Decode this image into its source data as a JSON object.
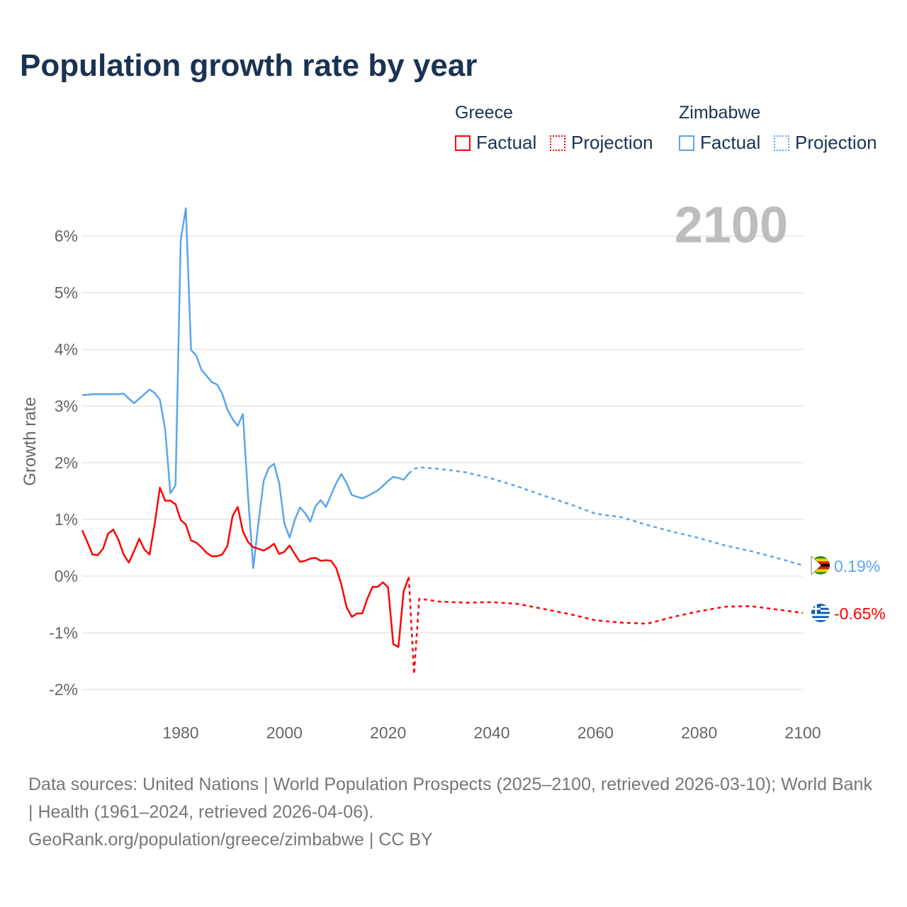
{
  "title": "Population growth rate by year",
  "legend": {
    "groups": [
      {
        "name": "Greece",
        "factual": "Factual",
        "projection": "Projection",
        "color": "#ff0000"
      },
      {
        "name": "Zimbabwe",
        "factual": "Factual",
        "projection": "Projection",
        "color": "#5aa5ec"
      }
    ]
  },
  "year_label": "2100",
  "footer": {
    "line1": "Data sources: United Nations | World Population Prospects (2025–2100, retrieved 2026-03-10); World Bank | Health (1961–2024, retrieved 2026-04-06).",
    "line2": "GeoRank.org/population/greece/zimbabwe | CC BY"
  },
  "chart_data": {
    "type": "line",
    "title": "Population growth rate by year",
    "xlabel": "",
    "ylabel": "Growth rate",
    "xlim": [
      1961,
      2100
    ],
    "ylim": [
      -2.3,
      6.8
    ],
    "xticks": [
      1980,
      2000,
      2020,
      2040,
      2060,
      2080,
      2100
    ],
    "yticks": [
      -2,
      -1,
      0,
      1,
      2,
      3,
      4,
      5,
      6
    ],
    "ytick_labels": [
      "-2%",
      "-1%",
      "0%",
      "1%",
      "2%",
      "3%",
      "4%",
      "5%",
      "6%"
    ],
    "grid": true,
    "end_labels": {
      "Zimbabwe": "0.19%",
      "Greece": "-0.65%"
    },
    "series": [
      {
        "name": "Zimbabwe Factual",
        "color": "#5aa5ec",
        "dashed": false,
        "x": [
          1961,
          1962,
          1963,
          1964,
          1965,
          1966,
          1967,
          1968,
          1969,
          1970,
          1971,
          1972,
          1973,
          1974,
          1975,
          1976,
          1977,
          1978,
          1979,
          1980,
          1981,
          1982,
          1983,
          1984,
          1985,
          1986,
          1987,
          1988,
          1989,
          1990,
          1991,
          1992,
          1993,
          1994,
          1995,
          1996,
          1997,
          1998,
          1999,
          2000,
          2001,
          2002,
          2003,
          2004,
          2005,
          2006,
          2007,
          2008,
          2009,
          2010,
          2011,
          2012,
          2013,
          2014,
          2015,
          2016,
          2017,
          2018,
          2019,
          2020,
          2021,
          2022,
          2023,
          2024
        ],
        "y": [
          3.19,
          3.2,
          3.21,
          3.21,
          3.21,
          3.21,
          3.21,
          3.21,
          3.22,
          3.13,
          3.05,
          3.13,
          3.21,
          3.29,
          3.23,
          3.11,
          2.59,
          1.46,
          1.6,
          5.92,
          6.49,
          3.99,
          3.89,
          3.64,
          3.53,
          3.42,
          3.38,
          3.22,
          2.94,
          2.77,
          2.65,
          2.86,
          1.4,
          0.14,
          0.95,
          1.68,
          1.91,
          1.98,
          1.64,
          0.93,
          0.68,
          0.99,
          1.21,
          1.11,
          0.96,
          1.23,
          1.34,
          1.22,
          1.43,
          1.64,
          1.8,
          1.64,
          1.43,
          1.4,
          1.37,
          1.41,
          1.46,
          1.51,
          1.59,
          1.68,
          1.75,
          1.73,
          1.7,
          1.81
        ]
      },
      {
        "name": "Zimbabwe Projection",
        "color": "#5aa5ec",
        "dashed": true,
        "x": [
          2024,
          2025,
          2026,
          2030,
          2035,
          2040,
          2045,
          2050,
          2055,
          2060,
          2065,
          2070,
          2075,
          2080,
          2085,
          2090,
          2095,
          2100
        ],
        "y": [
          1.81,
          1.89,
          1.92,
          1.89,
          1.83,
          1.72,
          1.58,
          1.42,
          1.27,
          1.1,
          1.04,
          0.9,
          0.78,
          0.67,
          0.54,
          0.44,
          0.32,
          0.19
        ]
      },
      {
        "name": "Greece Factual",
        "color": "#ff0000",
        "dashed": false,
        "x": [
          1961,
          1962,
          1963,
          1964,
          1965,
          1966,
          1967,
          1968,
          1969,
          1970,
          1971,
          1972,
          1973,
          1974,
          1975,
          1976,
          1977,
          1978,
          1979,
          1980,
          1981,
          1982,
          1983,
          1984,
          1985,
          1986,
          1987,
          1988,
          1989,
          1990,
          1991,
          1992,
          1993,
          1994,
          1995,
          1996,
          1997,
          1998,
          1999,
          2000,
          2001,
          2002,
          2003,
          2004,
          2005,
          2006,
          2007,
          2008,
          2009,
          2010,
          2011,
          2012,
          2013,
          2014,
          2015,
          2016,
          2017,
          2018,
          2019,
          2020,
          2021,
          2022,
          2023,
          2024
        ],
        "y": [
          0.81,
          0.6,
          0.38,
          0.37,
          0.48,
          0.75,
          0.82,
          0.64,
          0.38,
          0.24,
          0.44,
          0.66,
          0.47,
          0.38,
          0.93,
          1.56,
          1.33,
          1.33,
          1.27,
          0.99,
          0.91,
          0.63,
          0.59,
          0.51,
          0.41,
          0.35,
          0.35,
          0.38,
          0.53,
          1.06,
          1.22,
          0.79,
          0.6,
          0.51,
          0.48,
          0.45,
          0.5,
          0.57,
          0.39,
          0.43,
          0.54,
          0.39,
          0.25,
          0.27,
          0.31,
          0.32,
          0.27,
          0.28,
          0.27,
          0.14,
          -0.15,
          -0.55,
          -0.72,
          -0.66,
          -0.66,
          -0.4,
          -0.19,
          -0.19,
          -0.11,
          -0.2,
          -1.2,
          -1.25,
          -0.27,
          -0.02
        ]
      },
      {
        "name": "Greece Projection",
        "color": "#ff0000",
        "dashed": true,
        "x": [
          2024,
          2025,
          2026,
          2030,
          2035,
          2040,
          2045,
          2050,
          2055,
          2060,
          2065,
          2070,
          2075,
          2080,
          2085,
          2090,
          2095,
          2100
        ],
        "y": [
          -0.02,
          -1.73,
          -0.4,
          -0.45,
          -0.47,
          -0.46,
          -0.49,
          -0.58,
          -0.67,
          -0.78,
          -0.82,
          -0.84,
          -0.72,
          -0.62,
          -0.54,
          -0.53,
          -0.59,
          -0.65
        ]
      }
    ]
  }
}
